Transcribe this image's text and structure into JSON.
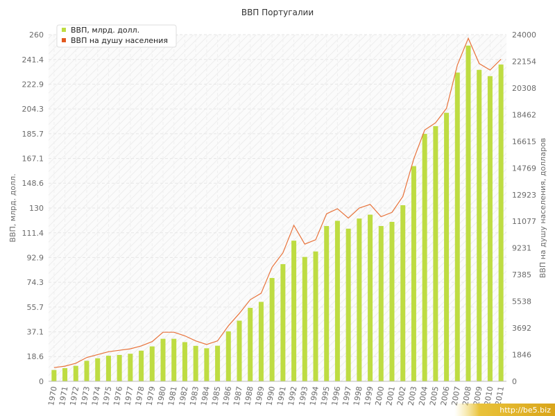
{
  "chart_data": {
    "type": "bar",
    "title": "ВВП Португалии",
    "categories": [
      "1970",
      "1971",
      "1972",
      "1973",
      "1974",
      "1975",
      "1976",
      "1977",
      "1978",
      "1979",
      "1980",
      "1981",
      "1982",
      "1983",
      "1984",
      "1985",
      "1986",
      "1987",
      "1988",
      "1989",
      "1990",
      "1991",
      "1992",
      "1993",
      "1994",
      "1995",
      "1996",
      "1997",
      "1998",
      "1999",
      "2000",
      "2001",
      "2002",
      "2003",
      "2004",
      "2005",
      "2006",
      "2007",
      "2008",
      "2009",
      "2010",
      "2011"
    ],
    "series": [
      {
        "name": "ВВП, млрд. долл.",
        "type": "bar",
        "axis": "left",
        "color": "#bedc42",
        "values": [
          8.5,
          9.9,
          11.6,
          15.4,
          17.3,
          19.2,
          19.8,
          20.7,
          23.0,
          26.2,
          31.9,
          31.9,
          29.4,
          26.6,
          24.8,
          26.7,
          37.5,
          45.5,
          55.1,
          59.6,
          77.5,
          87.9,
          105.5,
          93.3,
          97.4,
          116.5,
          120.4,
          114.5,
          122.1,
          125.0,
          116.5,
          119.6,
          132.1,
          161.4,
          185.6,
          191.4,
          201.4,
          231.6,
          251.8,
          233.6,
          228.9,
          237.6
        ]
      },
      {
        "name": "ВВП на душу населения",
        "type": "line",
        "axis": "right",
        "color": "#e8723a",
        "values": [
          950,
          1050,
          1250,
          1650,
          1850,
          2050,
          2150,
          2250,
          2450,
          2750,
          3400,
          3400,
          3150,
          2800,
          2550,
          2800,
          3850,
          4700,
          5650,
          6100,
          7900,
          8900,
          10800,
          9500,
          9800,
          11600,
          11950,
          11300,
          12000,
          12250,
          11400,
          11700,
          12800,
          15400,
          17400,
          17900,
          18900,
          21900,
          23750,
          22000,
          21550,
          22300
        ]
      }
    ],
    "y_left": {
      "label": "ВВП, млрд. долл.",
      "range": [
        0,
        260
      ],
      "ticks": [
        "0",
        "18.6",
        "37.1",
        "55.7",
        "74.3",
        "92.9",
        "111.4",
        "130",
        "148.6",
        "167.1",
        "185.7",
        "204.3",
        "222.9",
        "241.4",
        "260"
      ]
    },
    "y_right": {
      "label": "ВВП на душу населения, долларов",
      "range": [
        0,
        24000
      ],
      "ticks": [
        "0",
        "1846",
        "3692",
        "5538",
        "7385",
        "9231",
        "11077",
        "12923",
        "14769",
        "16615",
        "18462",
        "20308",
        "22154",
        "24000"
      ]
    },
    "grid": true,
    "legend_position": "top-left"
  },
  "watermark": "http://be5.biz"
}
